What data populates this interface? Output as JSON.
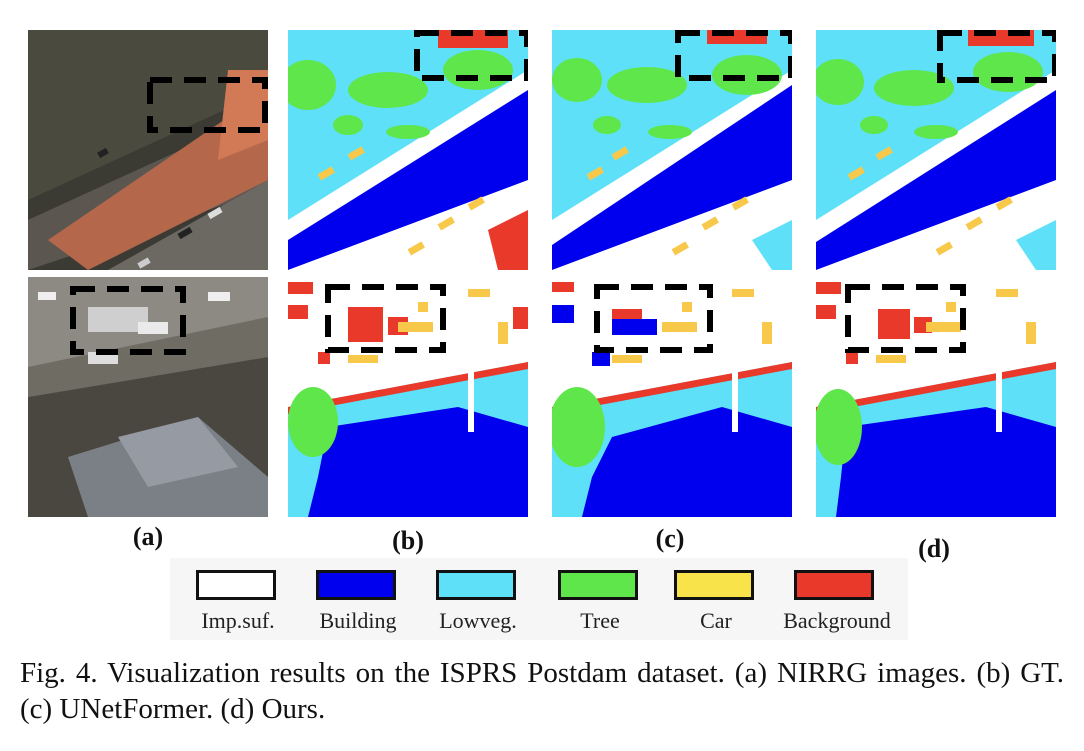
{
  "panel_labels": [
    "(a)",
    "(b)",
    "(c)",
    "(d)"
  ],
  "legend": [
    {
      "label": "Imp.suf.",
      "color": "#ffffff"
    },
    {
      "label": "Building",
      "color": "#0000ee"
    },
    {
      "label": "Lowveg.",
      "color": "#5ee0f8"
    },
    {
      "label": "Tree",
      "color": "#5ee64a"
    },
    {
      "label": "Car",
      "color": "#f8e34a"
    },
    {
      "label": "Background",
      "color": "#e8392a"
    }
  ],
  "caption": "Fig. 4.  Visualization results on the ISPRS Postdam dataset. (a) NIRRG images. (b) GT. (c) UNetFormer. (d) Ours."
}
